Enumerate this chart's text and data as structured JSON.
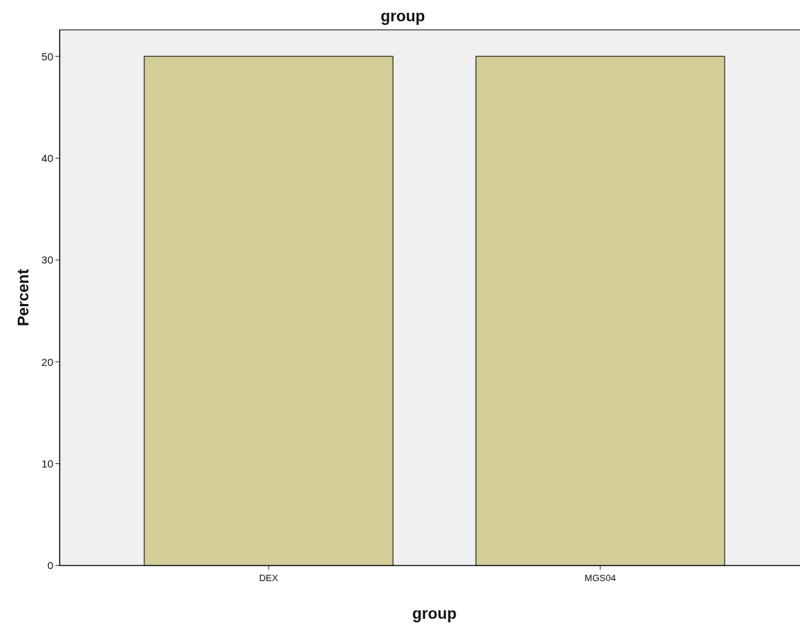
{
  "chart_data": {
    "type": "bar",
    "title": "group",
    "xlabel": "group",
    "ylabel": "Percent",
    "categories": [
      "DEX",
      "MGS04"
    ],
    "values": [
      50,
      50
    ],
    "color": "#d3ce97",
    "ylim": [
      0,
      52.6
    ],
    "yticks": [
      0,
      10,
      20,
      30,
      40,
      50
    ]
  }
}
